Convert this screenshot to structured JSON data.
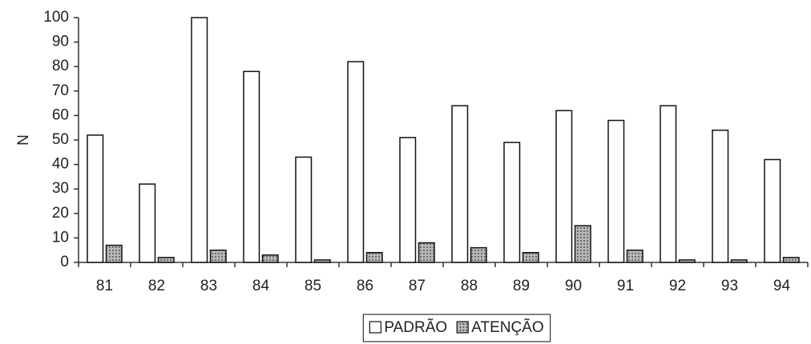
{
  "chart_data": {
    "type": "bar",
    "y_label": "N",
    "categories": [
      "81",
      "82",
      "83",
      "84",
      "85",
      "86",
      "87",
      "88",
      "89",
      "90",
      "91",
      "92",
      "93",
      "94"
    ],
    "series": [
      {
        "name": "PADRÃO",
        "color": "#ffffff",
        "values": [
          52,
          32,
          100,
          78,
          43,
          82,
          51,
          64,
          49,
          62,
          58,
          64,
          54,
          42
        ]
      },
      {
        "name": "ATENÇÃO",
        "color": "#b8b8b8",
        "values": [
          7,
          2,
          5,
          3,
          1,
          4,
          8,
          6,
          4,
          15,
          5,
          1,
          1,
          2
        ]
      }
    ],
    "ylim": [
      0,
      100
    ],
    "yticks": [
      0,
      10,
      20,
      30,
      40,
      50,
      60,
      70,
      80,
      90,
      100
    ],
    "grid": false,
    "legend": "bottom"
  }
}
